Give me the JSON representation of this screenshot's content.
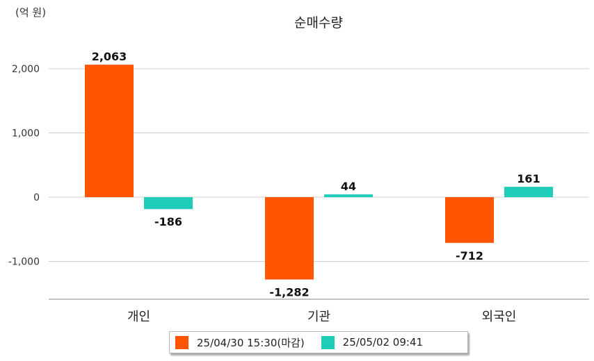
{
  "unit_label": "(억 원)",
  "chart_data": {
    "type": "bar",
    "title": "순매수량",
    "xlabel": "",
    "ylabel": "",
    "ylim": [
      -1600,
      2400
    ],
    "yticks": [
      2000,
      1000,
      0,
      -1000
    ],
    "ytick_labels": [
      "2,000",
      "1,000",
      "0",
      "-1,000"
    ],
    "grid": true,
    "legend_position": "bottom",
    "categories": [
      "개인",
      "기관",
      "외국인"
    ],
    "series": [
      {
        "name": "25/04/30 15:30(마감)",
        "color": "#ff5500",
        "values": [
          2063,
          -1282,
          -712
        ],
        "labels": [
          "2,063",
          "-1,282",
          "-712"
        ]
      },
      {
        "name": "25/05/02 09:41",
        "color": "#1fcbb9",
        "values": [
          -186,
          44,
          161
        ],
        "labels": [
          "-186",
          "44",
          "161"
        ]
      }
    ]
  }
}
